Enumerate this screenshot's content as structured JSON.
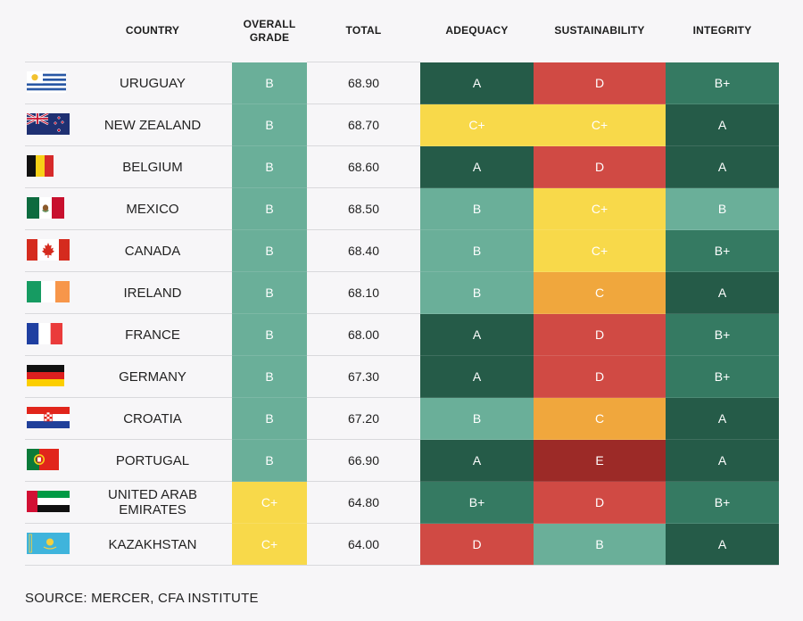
{
  "colors": {
    "A": "#255b48",
    "B+": "#357a62",
    "B": "#6aaf99",
    "C+": "#f8d94a",
    "C": "#f0a73d",
    "D": "#d04a44",
    "E": "#9c2a27"
  },
  "chart_data": {
    "type": "table",
    "columns": [
      "COUNTRY",
      "OVERALL GRADE",
      "TOTAL",
      "ADEQUACY",
      "SUSTAINABILITY",
      "INTEGRITY"
    ],
    "rows": [
      {
        "flag": "uruguay-flag-icon",
        "country": "URUGUAY",
        "overall": "B",
        "total": "68.90",
        "adequacy": "A",
        "sustainability": "D",
        "integrity": "B+"
      },
      {
        "flag": "new-zealand-flag-icon",
        "country": "NEW ZEALAND",
        "overall": "B",
        "total": "68.70",
        "adequacy": "C+",
        "sustainability": "C+",
        "integrity": "A"
      },
      {
        "flag": "belgium-flag-icon",
        "country": "BELGIUM",
        "overall": "B",
        "total": "68.60",
        "adequacy": "A",
        "sustainability": "D",
        "integrity": "A"
      },
      {
        "flag": "mexico-flag-icon",
        "country": "MEXICO",
        "overall": "B",
        "total": "68.50",
        "adequacy": "B",
        "sustainability": "C+",
        "integrity": "B"
      },
      {
        "flag": "canada-flag-icon",
        "country": "CANADA",
        "overall": "B",
        "total": "68.40",
        "adequacy": "B",
        "sustainability": "C+",
        "integrity": "B+"
      },
      {
        "flag": "ireland-flag-icon",
        "country": "IRELAND",
        "overall": "B",
        "total": "68.10",
        "adequacy": "B",
        "sustainability": "C",
        "integrity": "A"
      },
      {
        "flag": "france-flag-icon",
        "country": "FRANCE",
        "overall": "B",
        "total": "68.00",
        "adequacy": "A",
        "sustainability": "D",
        "integrity": "B+"
      },
      {
        "flag": "germany-flag-icon",
        "country": "GERMANY",
        "overall": "B",
        "total": "67.30",
        "adequacy": "A",
        "sustainability": "D",
        "integrity": "B+"
      },
      {
        "flag": "croatia-flag-icon",
        "country": "CROATIA",
        "overall": "B",
        "total": "67.20",
        "adequacy": "B",
        "sustainability": "C",
        "integrity": "A"
      },
      {
        "flag": "portugal-flag-icon",
        "country": "PORTUGAL",
        "overall": "B",
        "total": "66.90",
        "adequacy": "A",
        "sustainability": "E",
        "integrity": "A"
      },
      {
        "flag": "uae-flag-icon",
        "country": "UNITED ARAB EMIRATES",
        "overall": "C+",
        "total": "64.80",
        "adequacy": "B+",
        "sustainability": "D",
        "integrity": "B+"
      },
      {
        "flag": "kazakhstan-flag-icon",
        "country": "KAZAKHSTAN",
        "overall": "C+",
        "total": "64.00",
        "adequacy": "D",
        "sustainability": "B",
        "integrity": "A"
      }
    ]
  },
  "source": "SOURCE: MERCER, CFA INSTITUTE"
}
